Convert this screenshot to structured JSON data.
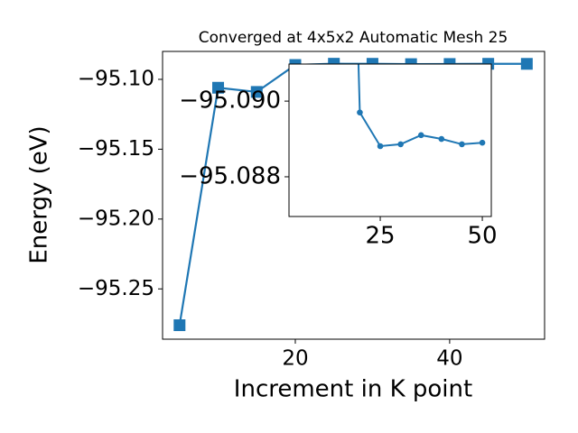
{
  "chart_data": {
    "type": "line",
    "title": "Converged at 4x5x2 Automatic Mesh 25",
    "xlabel": "Increment in K point",
    "ylabel": "Energy (eV)",
    "x": [
      5,
      10,
      15,
      20,
      25,
      30,
      35,
      40,
      45,
      50
    ],
    "series": [
      {
        "color": "#1f77b4",
        "marker": "square",
        "values": [
          -95.276,
          -95.106,
          -95.109,
          -95.0897,
          -95.08881,
          -95.08886,
          -95.0891,
          -95.089,
          -95.08886,
          -95.0889
        ]
      }
    ],
    "xlim": [
      2.8,
      52.3
    ],
    "ylim": [
      -95.286,
      -95.08
    ],
    "xticks": [
      20,
      40
    ],
    "yticks": [
      {
        "value": -95.25,
        "label": "−95.25"
      },
      {
        "value": -95.2,
        "label": "−95.20"
      },
      {
        "value": -95.15,
        "label": "−95.15"
      },
      {
        "value": -95.1,
        "label": "−95.10"
      }
    ],
    "inset": {
      "marker": "circle",
      "xlim": [
        2.65,
        52.2
      ],
      "ylim": [
        -95.08695,
        -95.09098
      ],
      "xticks": [
        25,
        50
      ],
      "yticks": [
        {
          "value": -95.088,
          "label": "−95.088"
        },
        {
          "value": -95.09,
          "label": "−95.090"
        }
      ]
    }
  }
}
